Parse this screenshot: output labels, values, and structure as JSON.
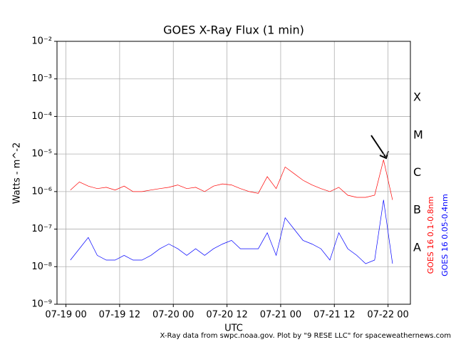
{
  "chart_data": {
    "type": "line",
    "title": "GOES X-Ray Flux (1 min)",
    "xlabel": "UTC",
    "ylabel": "Watts - m^-2",
    "log_y": true,
    "grid": true,
    "footer": "X-Ray data from swpc.noaa.gov. Plot by \"9 RESE LLC\" for spaceweathernews.com",
    "flare_classes": [
      "X",
      "M",
      "C",
      "B",
      "A"
    ],
    "xlim": [
      "07-18 22",
      "07-22 05"
    ],
    "xticks": [
      "07-19 00",
      "07-19 12",
      "07-20 00",
      "07-20 12",
      "07-21 00",
      "07-21 12",
      "07-22 00"
    ],
    "ylim": [
      1e-09,
      0.01
    ],
    "yticks": [
      {
        "value": 1e-09,
        "label": "10⁻⁹"
      },
      {
        "value": 1e-08,
        "label": "10⁻⁸"
      },
      {
        "value": 1e-07,
        "label": "10⁻⁷"
      },
      {
        "value": 1e-06,
        "label": "10⁻⁶"
      },
      {
        "value": 1e-05,
        "label": "10⁻⁵"
      },
      {
        "value": 0.0001,
        "label": "10⁻⁴"
      },
      {
        "value": 0.001,
        "label": "10⁻³"
      },
      {
        "value": 0.01,
        "label": "10⁻²"
      }
    ],
    "x": [
      "07-19 01",
      "07-19 03",
      "07-19 05",
      "07-19 07",
      "07-19 09",
      "07-19 11",
      "07-19 13",
      "07-19 15",
      "07-19 17",
      "07-19 19",
      "07-19 21",
      "07-19 23",
      "07-20 01",
      "07-20 03",
      "07-20 05",
      "07-20 07",
      "07-20 09",
      "07-20 11",
      "07-20 13",
      "07-20 15",
      "07-20 17",
      "07-20 19",
      "07-20 21",
      "07-20 23",
      "07-21 01",
      "07-21 03",
      "07-21 05",
      "07-21 07",
      "07-21 09",
      "07-21 11",
      "07-21 13",
      "07-21 15",
      "07-21 17",
      "07-21 19",
      "07-21 21",
      "07-21 23",
      "07-22 01"
    ],
    "series": [
      {
        "name": "GOES 16 0.1-0.8nm",
        "color": "#ff0000",
        "values": [
          1.1e-06,
          1.8e-06,
          1.4e-06,
          1.2e-06,
          1.3e-06,
          1.1e-06,
          1.4e-06,
          1e-06,
          1e-06,
          1.1e-06,
          1.2e-06,
          1.3e-06,
          1.5e-06,
          1.2e-06,
          1.3e-06,
          1e-06,
          1.4e-06,
          1.6e-06,
          1.5e-06,
          1.2e-06,
          1e-06,
          9e-07,
          2.5e-06,
          1.2e-06,
          4.5e-06,
          3e-06,
          2e-06,
          1.5e-06,
          1.2e-06,
          1e-06,
          1.3e-06,
          8e-07,
          7e-07,
          7e-07,
          8e-07,
          7e-06,
          6e-07
        ]
      },
      {
        "name": "GOES 16 0.05-0.4nm",
        "color": "#0000ff",
        "values": [
          1.5e-08,
          3e-08,
          6e-08,
          2e-08,
          1.5e-08,
          1.5e-08,
          2e-08,
          1.5e-08,
          1.5e-08,
          2e-08,
          3e-08,
          4e-08,
          3e-08,
          2e-08,
          3e-08,
          2e-08,
          3e-08,
          4e-08,
          5e-08,
          3e-08,
          3e-08,
          3e-08,
          8e-08,
          2e-08,
          2e-07,
          1e-07,
          5e-08,
          4e-08,
          3e-08,
          1.5e-08,
          8e-08,
          3e-08,
          2e-08,
          1.2e-08,
          1.5e-08,
          6e-07,
          1.2e-08
        ]
      }
    ]
  }
}
